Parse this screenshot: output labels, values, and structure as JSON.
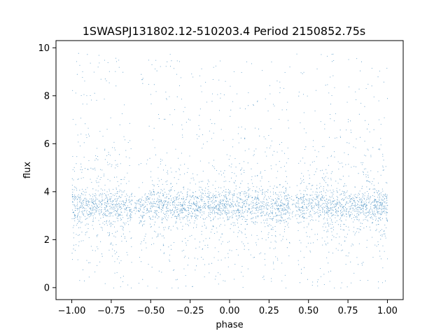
{
  "chart_data": {
    "type": "scatter",
    "title": "1SWASPJ131802.12-510203.4 Period 2150852.75s",
    "xlabel": "phase",
    "ylabel": "flux",
    "xlim": [
      -1.1,
      1.1
    ],
    "ylim": [
      -0.5,
      10.3
    ],
    "xticks": [
      -1.0,
      -0.75,
      -0.5,
      -0.25,
      0.0,
      0.25,
      0.5,
      0.75,
      1.0
    ],
    "xtick_labels": [
      "−1.00",
      "−0.75",
      "−0.50",
      "−0.25",
      "0.00",
      "0.25",
      "0.50",
      "0.75",
      "1.00"
    ],
    "yticks": [
      0,
      2,
      4,
      6,
      8,
      10
    ],
    "ytick_labels": [
      "0",
      "2",
      "4",
      "6",
      "8",
      "10"
    ],
    "grid": false,
    "marker_color": "#1f77b4",
    "series": [
      {
        "x_range": [
          -1.0,
          1.0
        ],
        "y_median": 3.4,
        "y_core_range": [
          2.6,
          4.2
        ],
        "y_full_range": [
          0.0,
          9.8
        ],
        "folded": true,
        "gap_phases": [
          -0.6,
          0.4
        ]
      }
    ]
  }
}
